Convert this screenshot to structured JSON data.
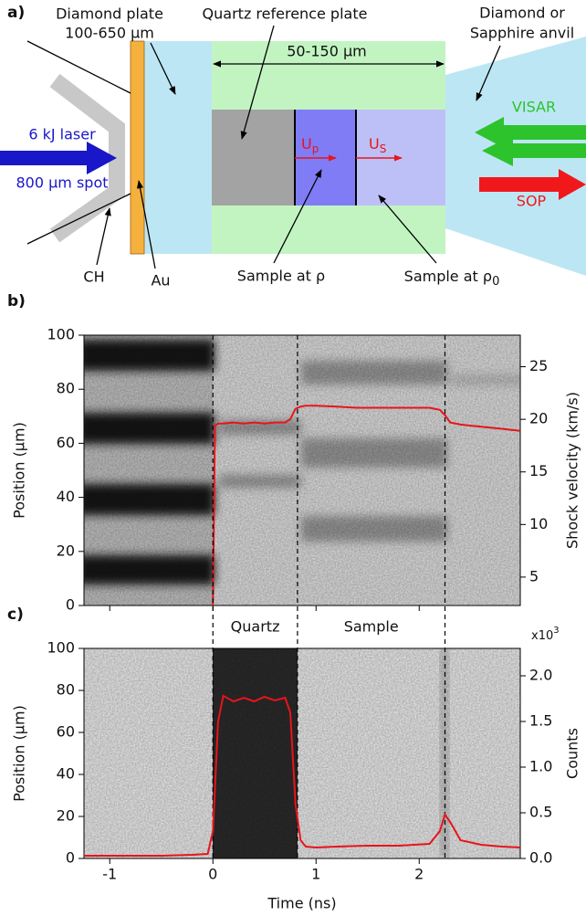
{
  "diagram": {
    "label": "a)",
    "diamond_plate": "Diamond plate",
    "diamond_thickness": "100-650 µm",
    "quartz_plate": "Quartz reference plate",
    "width": "50-150 µm",
    "anvil_line1": "Diamond or",
    "anvil_line2": "Sapphire anvil",
    "laser_line1": "6 kJ laser",
    "laser_line2": "800 µm spot",
    "ablator": "CH",
    "gold": "Au",
    "visar": "VISAR",
    "sop": "SOP",
    "up": {
      "main": "U",
      "sub": "p"
    },
    "us": {
      "main": "U",
      "sub": "S"
    },
    "sample_shocked": "Sample at ρ",
    "sample_initial": {
      "main": "Sample at ρ",
      "sub": "0"
    }
  },
  "chart_data": [
    {
      "type": "line",
      "panel_label": "b)",
      "ylabel": "Position (µm)",
      "y2label": "Shock velocity (km/s)",
      "xlim": [
        -1.25,
        2.98
      ],
      "xticks": [
        -1,
        0,
        1,
        2
      ],
      "ylim": [
        0,
        100
      ],
      "yticks": [
        0,
        20,
        40,
        60,
        80,
        100
      ],
      "y2lim": [
        2.3,
        28.0
      ],
      "y2ticks": [
        5,
        10,
        15,
        20,
        25
      ],
      "x": [
        0.0,
        0.02,
        0.05,
        0.1,
        0.2,
        0.3,
        0.4,
        0.5,
        0.6,
        0.7,
        0.75,
        0.8,
        0.85,
        0.9,
        1.0,
        1.2,
        1.4,
        1.6,
        1.8,
        2.0,
        2.1,
        2.2,
        2.25,
        2.3,
        2.4,
        2.5,
        2.6,
        2.7,
        2.8,
        2.9,
        2.98
      ],
      "series": [
        {
          "color": "#e8141b",
          "axis": "y2",
          "values": [
            2.3,
            19.4,
            19.6,
            19.6,
            19.7,
            19.6,
            19.7,
            19.6,
            19.7,
            19.7,
            20.0,
            21.0,
            21.2,
            21.3,
            21.3,
            21.2,
            21.1,
            21.1,
            21.1,
            21.1,
            21.1,
            20.9,
            20.4,
            19.7,
            19.5,
            19.4,
            19.3,
            19.2,
            19.1,
            19.0,
            18.9
          ]
        }
      ]
    },
    {
      "type": "line",
      "panel_label": "c)",
      "xlabel": "Time (ns)",
      "ylabel": "Position (µm)",
      "y2label": "Counts",
      "y2_scale": {
        "base": "x10",
        "exponent": "3"
      },
      "xlim": [
        -1.25,
        2.98
      ],
      "xticks": [
        -1,
        0,
        1,
        2
      ],
      "ylim": [
        0,
        100
      ],
      "yticks": [
        0,
        20,
        40,
        60,
        80,
        100
      ],
      "y2lim": [
        0,
        2.3
      ],
      "y2ticks": [
        {
          "value": 0,
          "label": "0.0"
        },
        0.5,
        {
          "value": 1,
          "label": "1.0"
        },
        1.5,
        {
          "value": 2,
          "label": "2.0"
        }
      ],
      "events": [
        0,
        0.82,
        2.25
      ],
      "annotations": [
        "Quartz",
        "Sample"
      ],
      "x": [
        -1.25,
        -1.0,
        -0.5,
        -0.2,
        -0.05,
        0.0,
        0.05,
        0.1,
        0.2,
        0.3,
        0.4,
        0.5,
        0.6,
        0.7,
        0.75,
        0.8,
        0.85,
        0.9,
        1.0,
        1.2,
        1.5,
        1.8,
        2.1,
        2.2,
        2.25,
        2.3,
        2.4,
        2.6,
        2.8,
        2.98
      ],
      "series": [
        {
          "color": "#e8141b",
          "axis": "y2",
          "values": [
            0.03,
            0.03,
            0.03,
            0.04,
            0.05,
            0.3,
            1.5,
            1.78,
            1.72,
            1.76,
            1.72,
            1.77,
            1.73,
            1.76,
            1.6,
            0.6,
            0.2,
            0.13,
            0.12,
            0.13,
            0.14,
            0.14,
            0.16,
            0.3,
            0.48,
            0.4,
            0.2,
            0.15,
            0.13,
            0.12
          ]
        }
      ]
    }
  ]
}
